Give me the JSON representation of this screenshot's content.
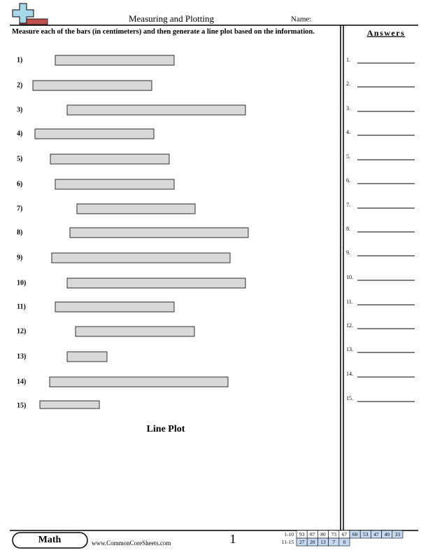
{
  "header": {
    "title": "Measuring and Plotting",
    "name_label": "Name:"
  },
  "instructions": "Measure each of the bars (in centimeters) and then generate a line plot based on the information.",
  "questions": [
    "1)",
    "2)",
    "3)",
    "4)",
    "5)",
    "6)",
    "7)",
    "8)",
    "9)",
    "10)",
    "11)",
    "12)",
    "13)",
    "14)",
    "15)"
  ],
  "section_title": "Line Plot",
  "answers": {
    "title": "Answers",
    "labels": [
      "1.",
      "2.",
      "3.",
      "4.",
      "5.",
      "6.",
      "7.",
      "8.",
      "9.",
      "10.",
      "11.",
      "12.",
      "13.",
      "14.",
      "15."
    ]
  },
  "footer": {
    "subject": "Math",
    "website": "www.CommonCoreSheets.com",
    "page": "1",
    "score_table": {
      "rows": [
        {
          "label": "1-10",
          "scores": [
            93,
            87,
            80,
            73,
            67,
            60,
            53,
            47,
            40,
            33
          ]
        },
        {
          "label": "11-15",
          "scores": [
            27,
            20,
            13,
            7,
            0
          ]
        }
      ]
    }
  }
}
